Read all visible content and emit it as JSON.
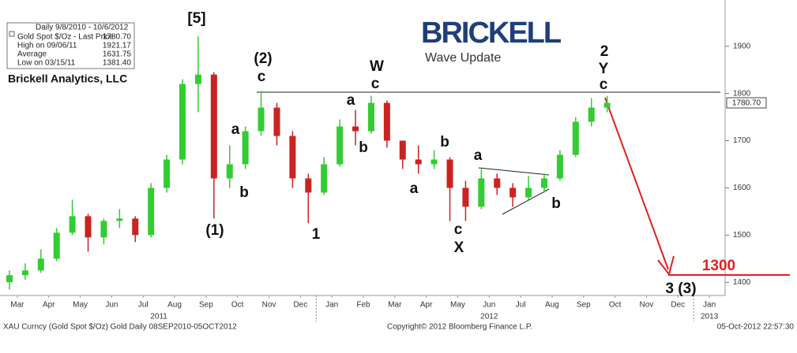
{
  "chart_data": {
    "type": "candlestick",
    "info_box": {
      "title": "Daily 9/8/2010 - 10/6/2012",
      "rows": [
        [
          "Gold Spot $/Oz - Last Price",
          "1780.70"
        ],
        [
          "High on 09/06/11",
          "1921.17"
        ],
        [
          "Average",
          "1631.75"
        ],
        [
          "Low on 03/15/11",
          "1381.40"
        ]
      ]
    },
    "publisher": "Brickell Analytics, LLC",
    "logo": "BRICKELL",
    "subtitle": "Wave Update",
    "last_price_label": "1780.70",
    "annotations": [
      "[5]",
      "(1)",
      "a",
      "b",
      "(2)",
      "c",
      "1",
      "a",
      "b",
      "W",
      "c",
      "a",
      "b",
      "c",
      "X",
      "a",
      "b",
      "2",
      "Y",
      "c",
      "1300",
      "3 (3)"
    ],
    "footer": {
      "left": "XAU Curncy (Gold Spot  $/Oz) Gold  Daily 08SEP2010-05OCT2012",
      "center": "Copyright© 2012 Bloomberg Finance L.P.",
      "right": "05-Oct-2012 22:57:30"
    },
    "up_color": "#33cc33",
    "down_color": "#cc2222",
    "x": [
      0.25,
      0.75,
      1.25,
      1.75,
      2.25,
      2.75,
      3.25,
      3.75,
      4.25,
      4.75,
      5.25,
      5.75,
      6.25,
      6.75,
      7.25,
      7.75,
      8.25,
      8.75,
      9.25,
      9.75,
      10.25,
      10.75,
      11.25,
      11.75,
      12.25,
      12.75,
      13.25,
      13.75,
      14.25,
      14.75,
      15.25,
      15.75,
      16.25,
      16.75,
      17.25,
      17.75,
      18.25,
      18.75,
      19.25
    ],
    "open": [
      1400,
      1415,
      1425,
      1450,
      1505,
      1540,
      1495,
      1530,
      1535,
      1500,
      1600,
      1660,
      1820,
      1840,
      1620,
      1650,
      1720,
      1770,
      1710,
      1620,
      1590,
      1650,
      1730,
      1720,
      1780,
      1700,
      1660,
      1650,
      1660,
      1600,
      1560,
      1620,
      1600,
      1580,
      1600,
      1620,
      1670,
      1740,
      1770
    ],
    "high": [
      1425,
      1440,
      1470,
      1515,
      1575,
      1545,
      1535,
      1555,
      1540,
      1610,
      1670,
      1830,
      1921,
      1845,
      1690,
      1730,
      1805,
      1780,
      1720,
      1630,
      1665,
      1745,
      1765,
      1795,
      1785,
      1700,
      1690,
      1680,
      1665,
      1615,
      1640,
      1630,
      1610,
      1625,
      1630,
      1680,
      1750,
      1790,
      1795
    ],
    "low": [
      1385,
      1405,
      1420,
      1445,
      1500,
      1465,
      1480,
      1515,
      1485,
      1495,
      1590,
      1650,
      1760,
      1535,
      1600,
      1640,
      1710,
      1690,
      1600,
      1525,
      1585,
      1645,
      1690,
      1715,
      1685,
      1640,
      1630,
      1640,
      1530,
      1530,
      1555,
      1585,
      1560,
      1575,
      1590,
      1615,
      1665,
      1730,
      1760
    ],
    "close": [
      1415,
      1425,
      1450,
      1505,
      1540,
      1495,
      1530,
      1535,
      1500,
      1600,
      1660,
      1820,
      1840,
      1620,
      1650,
      1720,
      1770,
      1710,
      1620,
      1590,
      1650,
      1730,
      1720,
      1780,
      1700,
      1660,
      1650,
      1660,
      1600,
      1560,
      1620,
      1600,
      1580,
      1600,
      1620,
      1670,
      1740,
      1770,
      1780
    ],
    "xlim": [
      0,
      23
    ],
    "xticks": [
      {
        "value": 0.5,
        "label": "Mar"
      },
      {
        "value": 1.5,
        "label": "Apr"
      },
      {
        "value": 2.5,
        "label": "May"
      },
      {
        "value": 3.5,
        "label": "Jun"
      },
      {
        "value": 4.5,
        "label": "Jul"
      },
      {
        "value": 5.5,
        "label": "Aug"
      },
      {
        "value": 6.5,
        "label": "Sep"
      },
      {
        "value": 7.5,
        "label": "Oct"
      },
      {
        "value": 8.5,
        "label": "Nov"
      },
      {
        "value": 9.5,
        "label": "Dec"
      },
      {
        "value": 10.5,
        "label": "Jan"
      },
      {
        "value": 11.5,
        "label": "Feb"
      },
      {
        "value": 12.5,
        "label": "Mar"
      },
      {
        "value": 13.5,
        "label": "Apr"
      },
      {
        "value": 14.5,
        "label": "May"
      },
      {
        "value": 15.5,
        "label": "Jun"
      },
      {
        "value": 16.5,
        "label": "Jul"
      },
      {
        "value": 17.5,
        "label": "Aug"
      },
      {
        "value": 18.5,
        "label": "Sep"
      },
      {
        "value": 19.5,
        "label": "Oct"
      },
      {
        "value": 20.5,
        "label": "Nov"
      },
      {
        "value": 21.5,
        "label": "Dec"
      },
      {
        "value": 22.5,
        "label": "Jan"
      }
    ],
    "year_ticks": [
      {
        "value": 5,
        "label": "2011"
      },
      {
        "value": 15.5,
        "label": "2012"
      },
      {
        "value": 22.5,
        "label": "2013"
      }
    ],
    "year_separators": [
      10,
      22
    ],
    "ylim": [
      1372,
      1998
    ],
    "yticks": [
      1400,
      1500,
      1600,
      1700,
      1800,
      1900
    ]
  }
}
